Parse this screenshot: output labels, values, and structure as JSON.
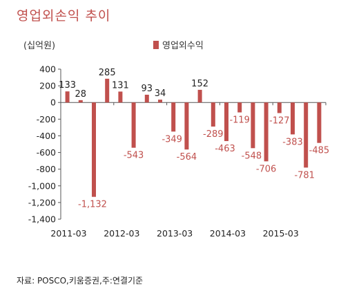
{
  "page_title": "영업외손익 추이",
  "unit_label": "(십억원)",
  "source": "자료: POSCO,키움증권,주:연결기준",
  "chart_data": {
    "type": "bar",
    "title": "영업외손익 추이",
    "ylabel": "(십억원)",
    "xlabel": "",
    "ylim": [
      -1400,
      400
    ],
    "yticks": [
      400,
      200,
      0,
      -200,
      -400,
      -600,
      -800,
      -1000,
      -1200,
      -1400
    ],
    "ytick_labels": [
      "400",
      "200",
      "0",
      "-200",
      "-400",
      "-600",
      "-800",
      "-1,000",
      "-1,200",
      "-1,400"
    ],
    "x_tick_labels": [
      {
        "label": "2011-03",
        "index": 0
      },
      {
        "label": "2012-03",
        "index": 4
      },
      {
        "label": "2013-03",
        "index": 8
      },
      {
        "label": "2014-03",
        "index": 12
      },
      {
        "label": "2015-03",
        "index": 16
      }
    ],
    "grid": false,
    "legend_position": "top",
    "color": "#c0504d",
    "series": [
      {
        "name": "영업외수익",
        "values": [
          133,
          28,
          -1132,
          285,
          131,
          -543,
          93,
          34,
          -349,
          -564,
          152,
          -289,
          -463,
          -119,
          -548,
          -706,
          -127,
          -383,
          -781,
          -485
        ]
      }
    ],
    "data_labels": [
      {
        "index": 0,
        "text": "133"
      },
      {
        "index": 1,
        "text": "28"
      },
      {
        "index": 2,
        "text": "-1,132"
      },
      {
        "index": 3,
        "text": "285"
      },
      {
        "index": 4,
        "text": "131"
      },
      {
        "index": 5,
        "text": "-543"
      },
      {
        "index": 6,
        "text": "93"
      },
      {
        "index": 7,
        "text": "34"
      },
      {
        "index": 8,
        "text": "-349"
      },
      {
        "index": 9,
        "text": "-564"
      },
      {
        "index": 10,
        "text": "152"
      },
      {
        "index": 11,
        "text": "-289"
      },
      {
        "index": 12,
        "text": "-463"
      },
      {
        "index": 13,
        "text": "-119"
      },
      {
        "index": 14,
        "text": "-548"
      },
      {
        "index": 15,
        "text": "-706"
      },
      {
        "index": 16,
        "text": "-127"
      },
      {
        "index": 17,
        "text": "-383"
      },
      {
        "index": 18,
        "text": "-781"
      },
      {
        "index": 19,
        "text": "-485"
      }
    ]
  }
}
